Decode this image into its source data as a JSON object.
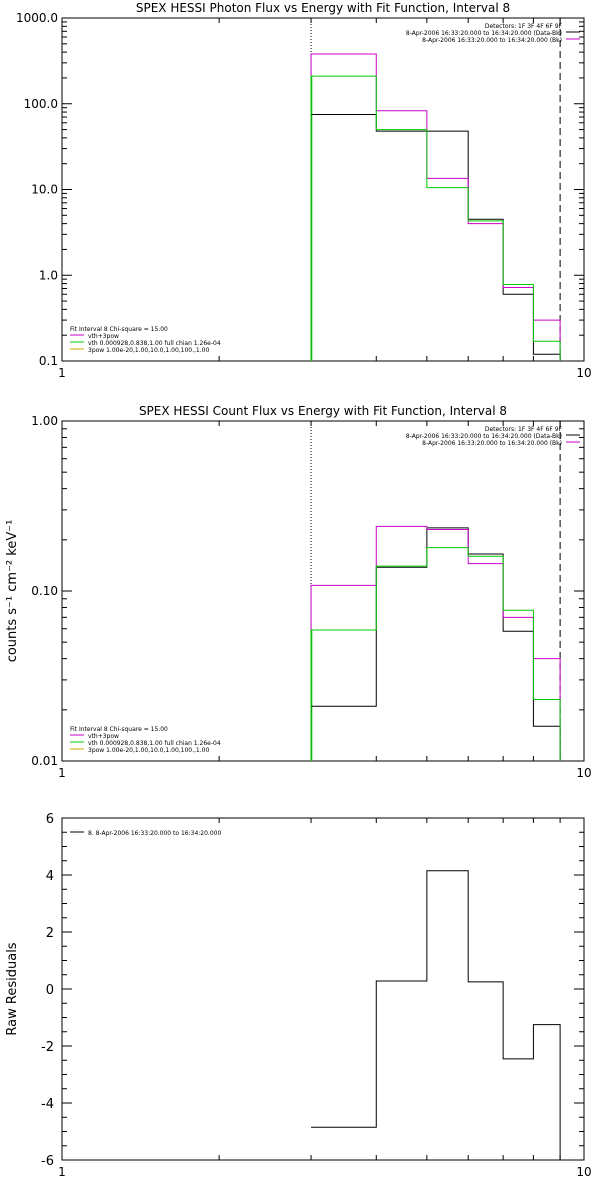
{
  "chart_data": [
    {
      "type": "line",
      "title": "SPEX HESSI Photon Flux vs Energy with Fit Function, Interval 8",
      "xscale": "log",
      "yscale": "log",
      "xlim": [
        1,
        10
      ],
      "ylim": [
        0.1,
        1000
      ],
      "xticks": [
        "1",
        "10"
      ],
      "yticks": [
        "0.1",
        "1.0",
        "10.0",
        "100.0",
        "1000.0"
      ],
      "xlabel": "",
      "ylabel": "",
      "grid": false,
      "legend_top": {
        "placement": "top-right",
        "lines": [
          {
            "text": "Detectors: 1F 3F 4F 6F 9F",
            "color": ""
          },
          {
            "text": "8-Apr-2006 16:33:20.000 to 16:34:20.000 (Data-Bk)",
            "color": "#000000"
          },
          {
            "text": "8-Apr-2006 16:33:20.000 to 16:34:20.000 (Bk)",
            "color": "#cc00cc"
          }
        ]
      },
      "legend_bottom": {
        "placement": "bottom-left",
        "lines": [
          {
            "text": "Fit Interval 8   Chi-square = 15.00",
            "color": ""
          },
          {
            "text": "vth+3pow",
            "color": "#cc00cc"
          },
          {
            "text": "vth 0.000928,0.838,1.00  full chian 1.26e-04",
            "color": "#00cc00"
          },
          {
            "text": "3pow 1.00e-20,1.00,10.0,1.00,100.,1.00",
            "color": "#ccaa00"
          }
        ]
      },
      "vlines": [
        {
          "x": 3.0,
          "style": "dotted",
          "color": "#000000"
        },
        {
          "x": 3.01,
          "style": "solid",
          "color": "#00cc00"
        },
        {
          "x": 9.0,
          "style": "dashed",
          "color": "#000000"
        }
      ],
      "bin_edges": [
        3.0,
        4.0,
        5.0,
        6.0,
        7.0,
        8.0,
        9.0
      ],
      "series": [
        {
          "name": "8-Apr-2006 16:33:20.000 to 16:34:20.000 (Data-Bk)",
          "color": "#000000",
          "values": [
            75,
            48,
            48,
            4.5,
            0.6,
            0.12
          ]
        },
        {
          "name": "8-Apr-2006 16:33:20.000 to 16:34:20.000 (Bk)",
          "color": "#cc00cc",
          "values": [
            380,
            83,
            13.5,
            4.0,
            0.72,
            0.3
          ]
        },
        {
          "name": "vth",
          "color": "#00cc00",
          "values": [
            210,
            50,
            10.5,
            4.3,
            0.78,
            0.17
          ]
        }
      ]
    },
    {
      "type": "line",
      "title": "SPEX HESSI Count Flux vs Energy with Fit Function, Interval 8",
      "xscale": "log",
      "yscale": "log",
      "xlim": [
        1,
        10
      ],
      "ylim": [
        0.01,
        1.0
      ],
      "xticks": [
        "1",
        "10"
      ],
      "yticks": [
        "0.01",
        "0.10",
        "1.00"
      ],
      "xlabel": "",
      "ylabel": "counts s⁻¹ cm⁻² keV⁻¹",
      "grid": false,
      "legend_top": {
        "placement": "top-right",
        "lines": [
          {
            "text": "Detectors: 1F 3F 4F 6F 9F",
            "color": ""
          },
          {
            "text": "8-Apr-2006 16:33:20.000 to 16:34:20.000 (Data-Bk)",
            "color": "#000000"
          },
          {
            "text": "8-Apr-2006 16:33:20.000 to 16:34:20.000 (Bk)",
            "color": "#cc00cc"
          }
        ]
      },
      "legend_bottom": {
        "placement": "bottom-left",
        "lines": [
          {
            "text": "Fit Interval 8   Chi-square = 15.00",
            "color": ""
          },
          {
            "text": "vth+3pow",
            "color": "#cc00cc"
          },
          {
            "text": "vth 0.000928,0.838,1.00  full chian 1.26e-04",
            "color": "#00cc00"
          },
          {
            "text": "3pow 1.00e-20,1.00,10.0,1.00,100.,1.00",
            "color": "#ccaa00"
          }
        ]
      },
      "vlines": [
        {
          "x": 3.0,
          "style": "dotted",
          "color": "#000000"
        },
        {
          "x": 3.01,
          "style": "solid",
          "color": "#00cc00"
        },
        {
          "x": 9.0,
          "style": "dashed",
          "color": "#000000"
        }
      ],
      "bin_edges": [
        3.0,
        4.0,
        5.0,
        6.0,
        7.0,
        8.0,
        9.0
      ],
      "series": [
        {
          "name": "8-Apr-2006 16:33:20.000 to 16:34:20.000 (Data-Bk)",
          "color": "#000000",
          "values": [
            0.021,
            0.138,
            0.235,
            0.165,
            0.058,
            0.016
          ]
        },
        {
          "name": "8-Apr-2006 16:33:20.000 to 16:34:20.000 (Bk)",
          "color": "#cc00cc",
          "values": [
            0.108,
            0.24,
            0.23,
            0.145,
            0.07,
            0.04
          ]
        },
        {
          "name": "vth",
          "color": "#00cc00",
          "values": [
            0.059,
            0.14,
            0.18,
            0.16,
            0.077,
            0.023
          ]
        }
      ]
    },
    {
      "type": "line",
      "title": "",
      "xscale": "log",
      "yscale": "linear",
      "xlim": [
        1,
        10
      ],
      "ylim": [
        -6,
        6
      ],
      "xticks": [
        "1",
        "10"
      ],
      "yticks": [
        "-6",
        "-4",
        "-2",
        "0",
        "2",
        "4",
        "6"
      ],
      "xlabel": "",
      "ylabel": "Raw Residuals",
      "grid": false,
      "legend_top": {
        "placement": "top-left",
        "lines": [
          {
            "text": "8.  8-Apr-2006 16:33:20.000 to 16:34:20.000",
            "color": "#000000"
          }
        ]
      },
      "vlines": [],
      "bin_edges": [
        3.0,
        4.0,
        5.0,
        6.0,
        7.0,
        8.0,
        9.0
      ],
      "series": [
        {
          "name": "8.  8-Apr-2006 16:33:20.000 to 16:34:20.000",
          "color": "#000000",
          "values": [
            -4.85,
            0.28,
            4.15,
            0.25,
            -2.45,
            -1.25
          ]
        }
      ]
    }
  ]
}
